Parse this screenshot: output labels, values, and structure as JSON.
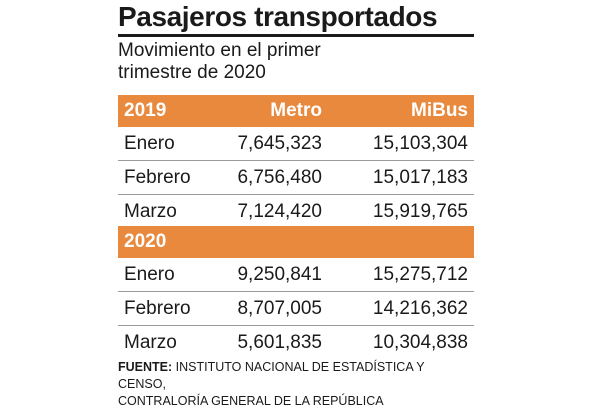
{
  "title": "Pasajeros transportados",
  "subtitle_line1": "Movimiento en el primer",
  "subtitle_line2": "trimestre de 2020",
  "columns": {
    "metro": "Metro",
    "mibus": "MiBus"
  },
  "source_label": "FUENTE:",
  "source_line1": "INSTITUTO NACIONAL DE ESTADÍSTICA Y CENSO,",
  "source_line2": "CONTRALORÍA GENERAL DE LA REPÚBLICA",
  "colors": {
    "band": "#e8893d",
    "text": "#1a1a1a",
    "rule": "#9a9a9a"
  },
  "chart_data": {
    "type": "table",
    "title": "Pasajeros transportados",
    "subtitle": "Movimiento en el primer trimestre de 2020",
    "columns": [
      "Metro",
      "MiBus"
    ],
    "groups": [
      {
        "year": "2019",
        "rows": [
          {
            "month": "Enero",
            "metro": "7,645,323",
            "mibus": "15,103,304"
          },
          {
            "month": "Febrero",
            "metro": "6,756,480",
            "mibus": "15,017,183"
          },
          {
            "month": "Marzo",
            "metro": "7,124,420",
            "mibus": "15,919,765"
          }
        ]
      },
      {
        "year": "2020",
        "rows": [
          {
            "month": "Enero",
            "metro": "9,250,841",
            "mibus": "15,275,712"
          },
          {
            "month": "Febrero",
            "metro": "8,707,005",
            "mibus": "14,216,362"
          },
          {
            "month": "Marzo",
            "metro": "5,601,835",
            "mibus": "10,304,838"
          }
        ]
      }
    ]
  }
}
